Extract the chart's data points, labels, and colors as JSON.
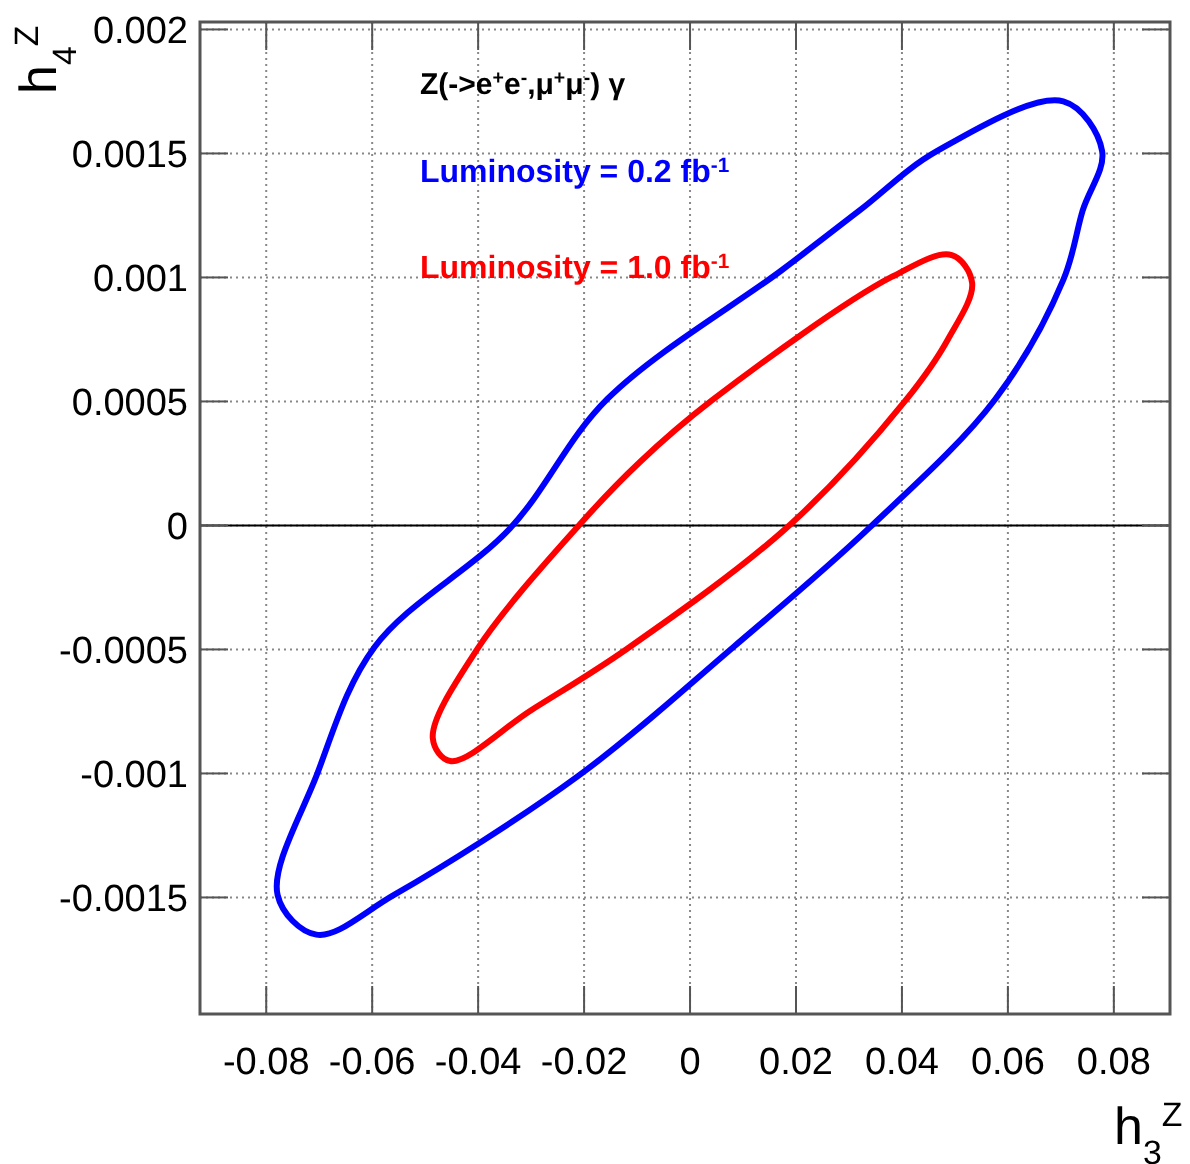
{
  "chart_data": {
    "type": "line",
    "xlabel": "h$_{3}$$^{Z}$",
    "ylabel": "h$_{4}$$^{Z}$",
    "annotations": [
      "Z(->e$^{+}$e$^{-}$,μ$^{+}$μ$^{-}$) γ",
      "Luminosity =  0.2 fb$^{-1}$",
      "Luminosity =  1.0 fb$^{-1}$"
    ],
    "xlim": [
      -0.0925,
      0.0906
    ],
    "ylim": [
      -0.00197,
      0.00203
    ],
    "xticks": [
      -0.08,
      -0.06,
      -0.04,
      -0.02,
      0,
      0.02,
      0.04,
      0.06,
      0.08
    ],
    "yticks": [
      -0.0015,
      -0.001,
      -0.0005,
      0,
      0.0005,
      0.001,
      0.0015,
      0.002
    ],
    "grid": true,
    "ref_lines": [
      {
        "axis": "y",
        "value": 0,
        "color": "#000000"
      }
    ]
  }
}
